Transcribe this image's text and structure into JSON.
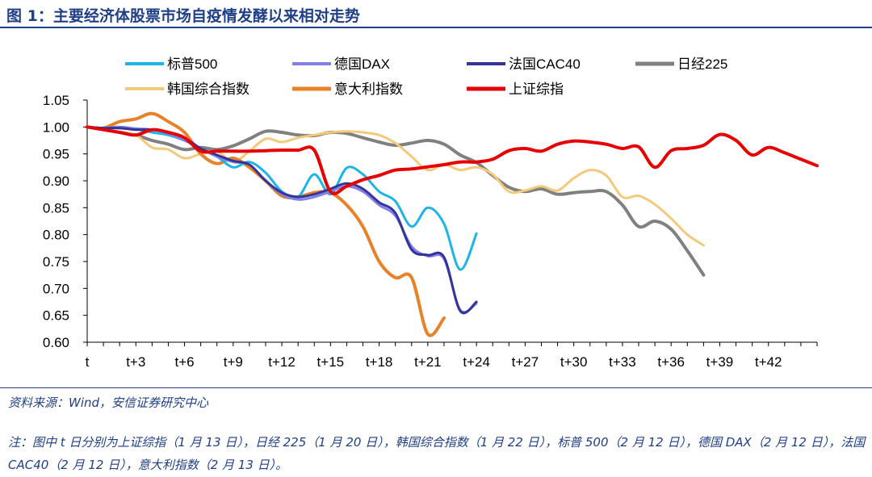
{
  "header": {
    "title": "图 1：主要经济体股票市场自疫情发酵以来相对走势"
  },
  "footer": {
    "source": "资料来源：Wind，安信证券研究中心",
    "note": "注：图中 t 日分别为上证综指（1 月 13 日），日经 225（1 月 20 日），韩国综合指数（1 月 22 日），标普 500（2 月 12 日），德国 DAX（2 月 12 日），法国 CAC40（2 月 12 日），意大利指数（2 月 13 日）。"
  },
  "chart_data": {
    "type": "line",
    "title": "",
    "xlabel": "",
    "ylabel": "",
    "x_tick_labels": [
      "t",
      "t+3",
      "t+6",
      "t+9",
      "t+12",
      "t+15",
      "t+18",
      "t+21",
      "t+24",
      "t+27",
      "t+30",
      "t+33",
      "t+36",
      "t+39",
      "t+42"
    ],
    "x_tick_positions": [
      0,
      3,
      6,
      9,
      12,
      15,
      18,
      21,
      24,
      27,
      30,
      33,
      36,
      39,
      42
    ],
    "xlim": [
      0,
      45
    ],
    "ylim": [
      0.6,
      1.05
    ],
    "y_ticks": [
      "0.60",
      "0.65",
      "0.70",
      "0.75",
      "0.80",
      "0.85",
      "0.90",
      "0.95",
      "1.00",
      "1.05"
    ],
    "grid": false,
    "legend_position": "top",
    "series": [
      {
        "name": "标普500",
        "color": "#1fb4e6",
        "width": 3,
        "values": [
          1.0,
          0.998,
          0.998,
          0.996,
          0.99,
          0.985,
          0.975,
          0.96,
          0.945,
          0.925,
          0.935,
          0.915,
          0.88,
          0.87,
          0.912,
          0.875,
          0.924,
          0.912,
          0.88,
          0.862,
          0.815,
          0.85,
          0.82,
          0.735,
          0.802
        ]
      },
      {
        "name": "德国DAX",
        "color": "#8080e8",
        "width": 3,
        "values": [
          1.0,
          0.998,
          1.0,
          0.997,
          0.995,
          0.988,
          0.975,
          0.96,
          0.945,
          0.935,
          0.93,
          0.9,
          0.875,
          0.865,
          0.87,
          0.88,
          0.89,
          0.88,
          0.855,
          0.835,
          0.778,
          0.76,
          0.755,
          0.66,
          0.672
        ]
      },
      {
        "name": "法国CAC40",
        "color": "#33339a",
        "width": 3,
        "values": [
          1.0,
          0.998,
          0.998,
          0.995,
          0.995,
          0.99,
          0.98,
          0.96,
          0.948,
          0.937,
          0.93,
          0.9,
          0.878,
          0.87,
          0.875,
          0.885,
          0.895,
          0.885,
          0.86,
          0.84,
          0.772,
          0.762,
          0.758,
          0.658,
          0.675
        ]
      },
      {
        "name": "日经225",
        "color": "#808080",
        "width": 4,
        "values": [
          1.0,
          0.995,
          0.99,
          0.985,
          0.975,
          0.968,
          0.958,
          0.962,
          0.958,
          0.965,
          0.978,
          0.992,
          0.99,
          0.985,
          0.984,
          0.99,
          0.988,
          0.98,
          0.972,
          0.966,
          0.97,
          0.975,
          0.968,
          0.948,
          0.934,
          0.91,
          0.888,
          0.88,
          0.885,
          0.875,
          0.878,
          0.88,
          0.88,
          0.855,
          0.815,
          0.825,
          0.81,
          0.77,
          0.725
        ]
      },
      {
        "name": "韩国综合指数",
        "color": "#f5c97a",
        "width": 3,
        "values": [
          1.0,
          0.995,
          0.99,
          0.985,
          0.962,
          0.958,
          0.942,
          0.95,
          0.955,
          0.935,
          0.955,
          0.978,
          0.972,
          0.98,
          0.985,
          0.99,
          0.992,
          0.99,
          0.985,
          0.97,
          0.945,
          0.92,
          0.93,
          0.92,
          0.925,
          0.912,
          0.88,
          0.882,
          0.89,
          0.882,
          0.905,
          0.92,
          0.91,
          0.87,
          0.872,
          0.856,
          0.83,
          0.8,
          0.78
        ]
      },
      {
        "name": "意大利指数",
        "color": "#e8822a",
        "width": 4,
        "values": [
          1.0,
          0.998,
          1.01,
          1.015,
          1.025,
          1.01,
          0.99,
          0.95,
          0.932,
          0.942,
          0.925,
          0.9,
          0.872,
          0.87,
          0.878,
          0.878,
          0.855,
          0.815,
          0.75,
          0.72,
          0.72,
          0.615,
          0.645
        ]
      },
      {
        "name": "上证综指",
        "color": "#e60000",
        "width": 4,
        "values": [
          1.0,
          0.995,
          0.99,
          0.985,
          0.995,
          0.99,
          0.98,
          0.955,
          0.955,
          0.955,
          0.955,
          0.956,
          0.957,
          0.957,
          0.957,
          0.88,
          0.89,
          0.902,
          0.91,
          0.92,
          0.922,
          0.926,
          0.93,
          0.935,
          0.935,
          0.94,
          0.956,
          0.96,
          0.955,
          0.968,
          0.974,
          0.972,
          0.968,
          0.96,
          0.963,
          0.925,
          0.956,
          0.96,
          0.966,
          0.986,
          0.975,
          0.948,
          0.962,
          0.952,
          0.94,
          0.928
        ]
      }
    ]
  }
}
